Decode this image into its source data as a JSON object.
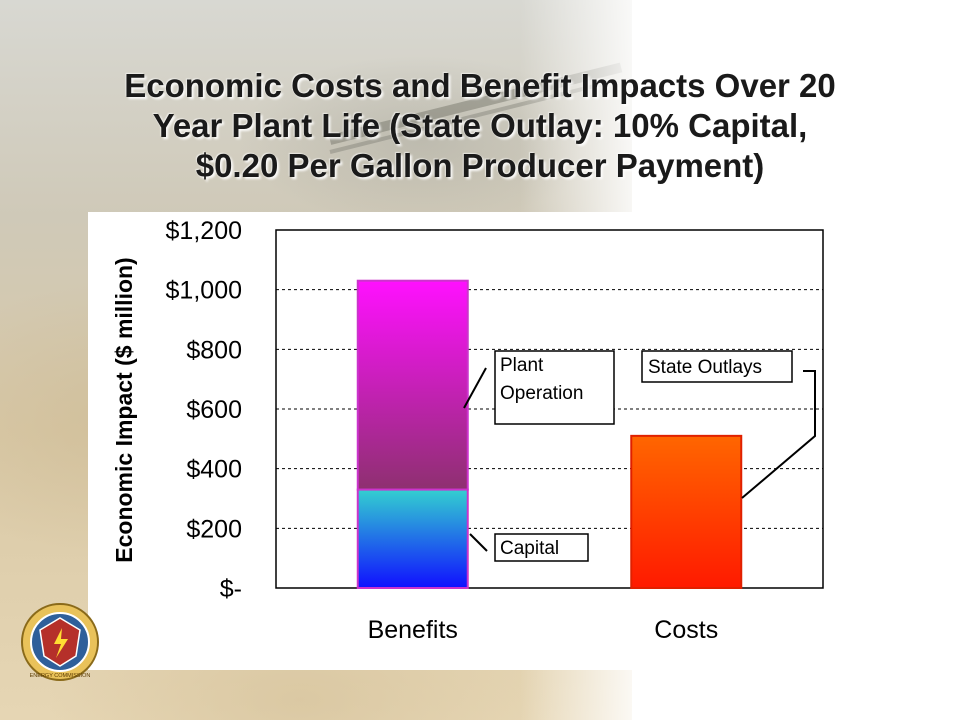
{
  "slide": {
    "title_lines": [
      "Economic Costs and Benefit Impacts Over 20",
      "Year Plant Life (State Outlay: 10% Capital,",
      "$0.20 Per Gallon Producer Payment)"
    ]
  },
  "chart_data": {
    "type": "bar",
    "stacked": true,
    "categories": [
      "Benefits",
      "Costs"
    ],
    "series": [
      {
        "name": "Capital",
        "values": [
          330,
          0
        ],
        "color_top": "#33d0d0",
        "color_bottom": "#1010ff"
      },
      {
        "name": "Plant Operation",
        "values": [
          700,
          0
        ],
        "color_top": "#ff10ff",
        "color_bottom": "#8e3070"
      },
      {
        "name": "State Outlays",
        "values": [
          0,
          510
        ],
        "color_top": "#ff6600",
        "color_bottom": "#ff1a00"
      }
    ],
    "ylabel": "Economic Impact ($ million)",
    "ylim": [
      0,
      1200
    ],
    "yticks": [
      0,
      200,
      400,
      600,
      800,
      1000,
      1200
    ],
    "ytick_labels": [
      "$-",
      "$200",
      "$400",
      "$600",
      "$800",
      "$1,000",
      "$1,200"
    ],
    "grid": true,
    "annotations": [
      {
        "series": "Plant Operation",
        "lines": [
          "Plant",
          "Operation"
        ]
      },
      {
        "series": "Capital",
        "lines": [
          "Capital"
        ]
      },
      {
        "series": "State Outlays",
        "lines": [
          "State Outlays"
        ]
      }
    ]
  },
  "icons": {
    "seal": "california-energy-commission-seal-icon",
    "seal_text": "ENERGY COMMISSION"
  }
}
